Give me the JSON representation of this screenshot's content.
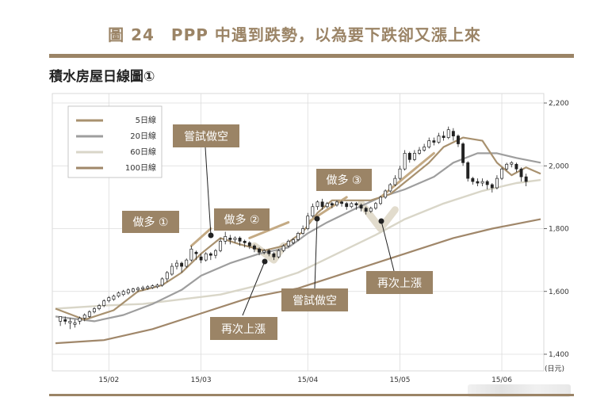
{
  "figure_title": "圖 24　PPP 中遇到跌勢，以為要下跌卻又漲上來",
  "subtitle": "積水房屋日線圖①",
  "colors": {
    "accent": "#9b8466",
    "ma5": "#a8916f",
    "ma20": "#9e9e9e",
    "ma60": "#d9d6c8",
    "ma100": "#a0876a",
    "trend": "#c4aa84",
    "candle": "#222222"
  },
  "chart_data": {
    "type": "candlestick",
    "ylim": [
      1400,
      2200
    ],
    "ytick_labels": [
      "2,200",
      "2,000",
      "1,800",
      "1,600",
      "1,400"
    ],
    "yticks": [
      2200,
      2000,
      1800,
      1600,
      1400
    ],
    "yunit": "(日元)",
    "x_labels": [
      {
        "label": "15/02",
        "index": 11
      },
      {
        "label": "15/03",
        "index": 30
      },
      {
        "label": "15/04",
        "index": 52
      },
      {
        "label": "15/05",
        "index": 71
      },
      {
        "label": "15/06",
        "index": 92
      }
    ],
    "legend": [
      "5日線",
      "20日線",
      "60日線",
      "100日線"
    ],
    "x_count": 100,
    "ma_points": {
      "ma5": [
        [
          0,
          1545
        ],
        [
          6,
          1510
        ],
        [
          12,
          1540
        ],
        [
          17,
          1600
        ],
        [
          22,
          1620
        ],
        [
          26,
          1660
        ],
        [
          30,
          1720
        ],
        [
          34,
          1770
        ],
        [
          38,
          1750
        ],
        [
          43,
          1730
        ],
        [
          47,
          1745
        ],
        [
          51,
          1790
        ],
        [
          54,
          1850
        ],
        [
          57,
          1890
        ],
        [
          61,
          1890
        ],
        [
          65,
          1890
        ],
        [
          69,
          1910
        ],
        [
          73,
          1960
        ],
        [
          77,
          2010
        ],
        [
          80,
          2060
        ],
        [
          84,
          2090
        ],
        [
          88,
          2080
        ],
        [
          91,
          2010
        ],
        [
          94,
          1970
        ],
        [
          97,
          1995
        ],
        [
          100,
          1975
        ]
      ],
      "ma20": [
        [
          0,
          1520
        ],
        [
          8,
          1505
        ],
        [
          14,
          1525
        ],
        [
          20,
          1560
        ],
        [
          26,
          1605
        ],
        [
          30,
          1650
        ],
        [
          36,
          1690
        ],
        [
          42,
          1720
        ],
        [
          48,
          1740
        ],
        [
          52,
          1785
        ],
        [
          56,
          1820
        ],
        [
          62,
          1865
        ],
        [
          67,
          1900
        ],
        [
          72,
          1925
        ],
        [
          78,
          1965
        ],
        [
          82,
          2010
        ],
        [
          87,
          2040
        ],
        [
          91,
          2040
        ],
        [
          95,
          2025
        ],
        [
          100,
          2010
        ]
      ],
      "ma60": [
        [
          0,
          1545
        ],
        [
          10,
          1555
        ],
        [
          18,
          1560
        ],
        [
          26,
          1575
        ],
        [
          34,
          1590
        ],
        [
          42,
          1620
        ],
        [
          50,
          1660
        ],
        [
          58,
          1720
        ],
        [
          66,
          1780
        ],
        [
          72,
          1830
        ],
        [
          80,
          1880
        ],
        [
          88,
          1920
        ],
        [
          95,
          1945
        ],
        [
          100,
          1955
        ]
      ],
      "ma100": [
        [
          0,
          1435
        ],
        [
          10,
          1445
        ],
        [
          20,
          1480
        ],
        [
          30,
          1530
        ],
        [
          40,
          1580
        ],
        [
          50,
          1610
        ],
        [
          58,
          1650
        ],
        [
          66,
          1690
        ],
        [
          74,
          1730
        ],
        [
          82,
          1770
        ],
        [
          90,
          1800
        ],
        [
          100,
          1830
        ]
      ]
    },
    "trend_lines": [
      [
        [
          28,
          1745
        ],
        [
          32,
          1800
        ]
      ],
      [
        [
          40,
          1770
        ],
        [
          48,
          1820
        ]
      ],
      [
        [
          52,
          1820
        ],
        [
          60,
          1900
        ]
      ],
      [
        [
          67,
          1900
        ],
        [
          78,
          2040
        ]
      ]
    ],
    "dip_shapes": [
      [
        [
          41,
          1745
        ],
        [
          45,
          1700
        ],
        [
          47,
          1745
        ]
      ],
      [
        [
          63,
          1880
        ],
        [
          67,
          1800
        ],
        [
          70,
          1860
        ]
      ]
    ],
    "candles": [
      [
        1,
        1505,
        1520,
        1490,
        1515
      ],
      [
        2,
        1510,
        1505,
        1495,
        1520
      ],
      [
        3,
        1500,
        1505,
        1480,
        1515
      ],
      [
        4,
        1495,
        1500,
        1485,
        1510
      ],
      [
        5,
        1505,
        1515,
        1495,
        1520
      ],
      [
        6,
        1515,
        1525,
        1505,
        1530
      ],
      [
        7,
        1520,
        1535,
        1515,
        1540
      ],
      [
        8,
        1535,
        1545,
        1530,
        1550
      ],
      [
        9,
        1545,
        1555,
        1540,
        1560
      ],
      [
        10,
        1555,
        1570,
        1550,
        1575
      ],
      [
        11,
        1570,
        1580,
        1565,
        1585
      ],
      [
        12,
        1575,
        1585,
        1570,
        1590
      ],
      [
        13,
        1585,
        1595,
        1580,
        1600
      ],
      [
        14,
        1590,
        1600,
        1585,
        1605
      ],
      [
        15,
        1595,
        1605,
        1590,
        1610
      ],
      [
        16,
        1600,
        1608,
        1595,
        1612
      ],
      [
        17,
        1605,
        1610,
        1598,
        1615
      ],
      [
        18,
        1608,
        1612,
        1602,
        1618
      ],
      [
        19,
        1610,
        1615,
        1605,
        1620
      ],
      [
        20,
        1612,
        1618,
        1608,
        1622
      ],
      [
        21,
        1615,
        1620,
        1610,
        1625
      ],
      [
        22,
        1620,
        1640,
        1615,
        1645
      ],
      [
        23,
        1640,
        1660,
        1630,
        1665
      ],
      [
        24,
        1655,
        1680,
        1650,
        1690
      ],
      [
        25,
        1680,
        1690,
        1670,
        1700
      ],
      [
        26,
        1690,
        1680,
        1660,
        1695
      ],
      [
        27,
        1680,
        1700,
        1675,
        1705
      ],
      [
        28,
        1700,
        1735,
        1695,
        1745
      ],
      [
        29,
        1725,
        1720,
        1700,
        1730
      ],
      [
        30,
        1710,
        1700,
        1690,
        1720
      ],
      [
        31,
        1700,
        1720,
        1695,
        1725
      ],
      [
        32,
        1720,
        1715,
        1700,
        1725
      ],
      [
        33,
        1715,
        1730,
        1705,
        1735
      ],
      [
        34,
        1730,
        1760,
        1725,
        1770
      ],
      [
        35,
        1760,
        1775,
        1750,
        1790
      ],
      [
        36,
        1770,
        1765,
        1750,
        1780
      ],
      [
        37,
        1765,
        1770,
        1755,
        1775
      ],
      [
        38,
        1770,
        1760,
        1745,
        1775
      ],
      [
        39,
        1760,
        1755,
        1740,
        1765
      ],
      [
        40,
        1755,
        1745,
        1735,
        1760
      ],
      [
        41,
        1745,
        1735,
        1725,
        1750
      ],
      [
        42,
        1735,
        1725,
        1715,
        1740
      ],
      [
        43,
        1725,
        1730,
        1718,
        1735
      ],
      [
        44,
        1730,
        1720,
        1712,
        1735
      ],
      [
        45,
        1720,
        1710,
        1700,
        1725
      ],
      [
        46,
        1710,
        1730,
        1705,
        1735
      ],
      [
        47,
        1730,
        1745,
        1725,
        1750
      ],
      [
        48,
        1745,
        1760,
        1740,
        1765
      ],
      [
        49,
        1755,
        1765,
        1750,
        1770
      ],
      [
        50,
        1765,
        1785,
        1760,
        1790
      ],
      [
        51,
        1785,
        1800,
        1780,
        1810
      ],
      [
        52,
        1800,
        1840,
        1795,
        1850
      ],
      [
        53,
        1840,
        1870,
        1835,
        1880
      ],
      [
        54,
        1870,
        1885,
        1860,
        1890
      ],
      [
        55,
        1885,
        1870,
        1860,
        1895
      ],
      [
        56,
        1870,
        1880,
        1865,
        1885
      ],
      [
        57,
        1880,
        1875,
        1865,
        1885
      ],
      [
        58,
        1875,
        1885,
        1870,
        1890
      ],
      [
        59,
        1885,
        1880,
        1870,
        1890
      ],
      [
        60,
        1880,
        1870,
        1860,
        1885
      ],
      [
        61,
        1870,
        1880,
        1865,
        1885
      ],
      [
        62,
        1880,
        1875,
        1860,
        1885
      ],
      [
        63,
        1875,
        1865,
        1855,
        1880
      ],
      [
        64,
        1865,
        1855,
        1845,
        1870
      ],
      [
        65,
        1855,
        1865,
        1850,
        1870
      ],
      [
        66,
        1865,
        1880,
        1860,
        1885
      ],
      [
        67,
        1880,
        1900,
        1875,
        1905
      ],
      [
        68,
        1900,
        1920,
        1895,
        1925
      ],
      [
        69,
        1920,
        1940,
        1915,
        1945
      ],
      [
        70,
        1940,
        1960,
        1935,
        1970
      ],
      [
        71,
        1960,
        1990,
        1955,
        2000
      ],
      [
        72,
        1990,
        2040,
        1985,
        2050
      ],
      [
        73,
        2040,
        2020,
        2010,
        2045
      ],
      [
        74,
        2020,
        2040,
        2015,
        2050
      ],
      [
        75,
        2040,
        2050,
        2035,
        2060
      ],
      [
        76,
        2050,
        2060,
        2045,
        2070
      ],
      [
        77,
        2060,
        2080,
        2055,
        2090
      ],
      [
        78,
        2080,
        2075,
        2065,
        2090
      ],
      [
        79,
        2075,
        2095,
        2070,
        2105
      ],
      [
        80,
        2095,
        2090,
        2080,
        2110
      ],
      [
        81,
        2090,
        2115,
        2085,
        2125
      ],
      [
        82,
        2110,
        2095,
        2080,
        2120
      ],
      [
        83,
        2095,
        2070,
        2060,
        2100
      ],
      [
        84,
        2070,
        2010,
        2000,
        2075
      ],
      [
        85,
        2010,
        1960,
        1950,
        2015
      ],
      [
        86,
        1960,
        1950,
        1940,
        1965
      ],
      [
        87,
        1950,
        1945,
        1935,
        1960
      ],
      [
        88,
        1945,
        1950,
        1935,
        1960
      ],
      [
        89,
        1950,
        1940,
        1925,
        1955
      ],
      [
        90,
        1940,
        1930,
        1915,
        1945
      ],
      [
        91,
        1930,
        1960,
        1925,
        1970
      ],
      [
        92,
        1960,
        1990,
        1955,
        1995
      ],
      [
        93,
        1990,
        2005,
        1985,
        2010
      ],
      [
        94,
        2005,
        2010,
        1995,
        2015
      ],
      [
        95,
        2005,
        1990,
        1980,
        2010
      ],
      [
        96,
        1990,
        1965,
        1950,
        1995
      ],
      [
        97,
        1965,
        1950,
        1935,
        1975
      ]
    ]
  },
  "legend_labels": {
    "ma5": "5日線",
    "ma20": "20日線",
    "ma60": "60日線",
    "ma100": "100日線"
  },
  "annotations": {
    "buy1": "做多 ①",
    "buy2": "做多 ②",
    "buy3": "做多 ③",
    "try_short_1": "嘗試做空",
    "try_short_2": "嘗試做空",
    "rise_again_1": "再次上漲",
    "rise_again_2": "再次上漲"
  }
}
